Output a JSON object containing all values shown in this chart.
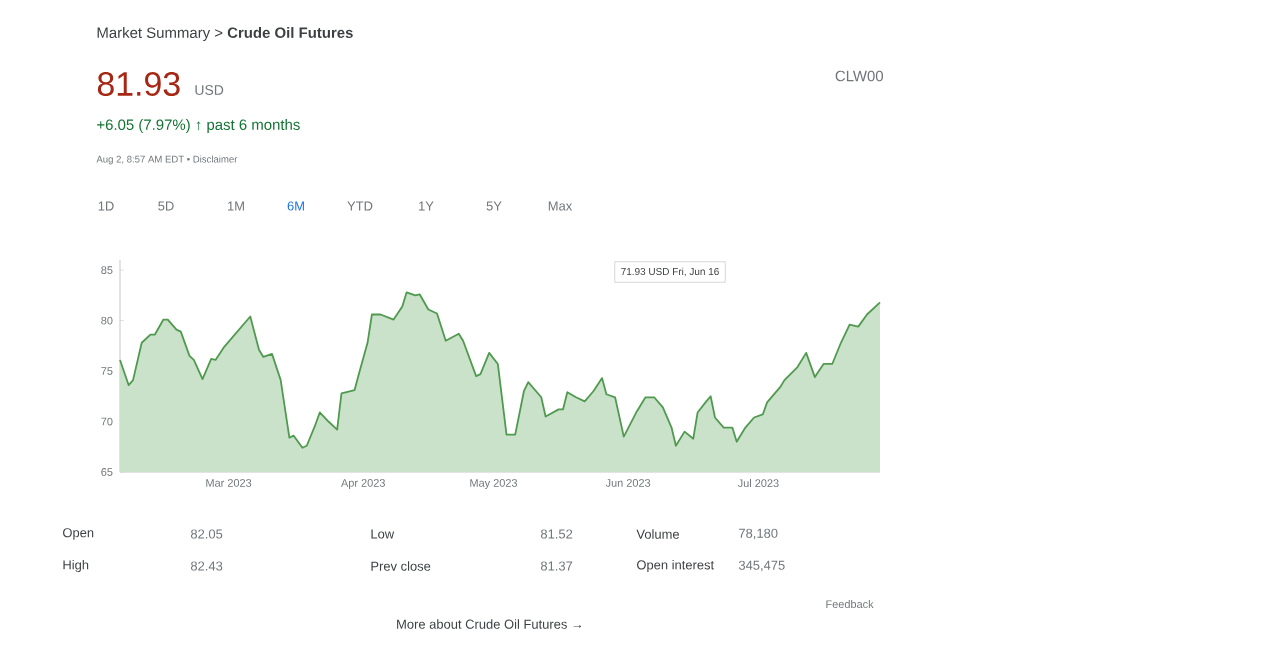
{
  "chart_data": {
    "type": "area",
    "title": "Market Summary > **Crude Oil Futures**",
    "color": "#4f9a4f",
    "x": [
      "2023-02-04",
      "2023-02-06",
      "2023-02-07",
      "2023-02-09",
      "2023-02-11",
      "2023-02-12",
      "2023-02-14",
      "2023-02-15",
      "2023-02-17",
      "2023-02-18",
      "2023-02-20",
      "2023-02-21",
      "2023-02-23",
      "2023-02-25",
      "2023-02-26",
      "2023-02-28",
      "2023-03-02",
      "2023-03-06",
      "2023-03-08",
      "2023-03-09",
      "2023-03-11",
      "2023-03-13",
      "2023-03-15",
      "2023-03-16",
      "2023-03-18",
      "2023-03-19",
      "2023-03-21",
      "2023-03-22",
      "2023-03-24",
      "2023-03-26",
      "2023-03-27",
      "2023-03-30",
      "2023-03-31",
      "2023-04-02",
      "2023-04-03",
      "2023-04-05",
      "2023-04-08",
      "2023-04-10",
      "2023-04-11",
      "2023-04-13",
      "2023-04-14",
      "2023-04-16",
      "2023-04-18",
      "2023-04-20",
      "2023-04-23",
      "2023-04-24",
      "2023-04-27",
      "2023-04-28",
      "2023-04-30",
      "2023-05-02",
      "2023-05-04",
      "2023-05-06",
      "2023-05-08",
      "2023-05-09",
      "2023-05-12",
      "2023-05-13",
      "2023-05-16",
      "2023-05-17",
      "2023-05-18",
      "2023-05-20",
      "2023-05-22",
      "2023-05-24",
      "2023-05-26",
      "2023-05-27",
      "2023-05-29",
      "2023-05-31",
      "2023-06-03",
      "2023-06-05",
      "2023-06-07",
      "2023-06-09",
      "2023-06-11",
      "2023-06-12",
      "2023-06-14",
      "2023-06-16",
      "2023-06-17",
      "2023-06-19",
      "2023-06-20",
      "2023-06-21",
      "2023-06-23",
      "2023-06-25",
      "2023-06-26",
      "2023-06-28",
      "2023-06-30",
      "2023-07-02",
      "2023-07-03",
      "2023-07-06",
      "2023-07-07",
      "2023-07-10",
      "2023-07-12",
      "2023-07-14",
      "2023-07-16",
      "2023-07-18",
      "2023-07-20",
      "2023-07-22",
      "2023-07-24",
      "2023-07-26",
      "2023-07-29"
    ],
    "values": [
      76.1,
      73.6,
      74.1,
      77.8,
      78.6,
      78.6,
      80.1,
      80.1,
      79.1,
      78.9,
      76.5,
      76.1,
      74.2,
      76.2,
      76.1,
      77.4,
      78.4,
      80.4,
      77.1,
      76.4,
      76.7,
      74.1,
      68.4,
      68.6,
      67.4,
      67.6,
      69.7,
      70.9,
      70.0,
      69.2,
      72.8,
      73.1,
      74.7,
      77.8,
      80.6,
      80.6,
      80.1,
      81.4,
      82.8,
      82.5,
      82.6,
      81.1,
      80.7,
      78.0,
      78.7,
      78.0,
      74.5,
      74.7,
      76.8,
      75.7,
      68.7,
      68.7,
      73.0,
      73.9,
      72.4,
      70.5,
      71.2,
      71.2,
      72.9,
      72.4,
      72.0,
      73.0,
      74.3,
      72.7,
      72.4,
      68.5,
      71.0,
      72.4,
      72.4,
      71.4,
      69.4,
      67.6,
      69.0,
      68.3,
      70.9,
      72.0,
      72.5,
      70.4,
      69.4,
      69.4,
      68.0,
      69.4,
      70.4,
      70.7,
      71.9,
      73.4,
      74.1,
      75.4,
      76.8,
      74.4,
      75.7,
      75.7,
      77.8,
      79.6,
      79.4,
      80.6,
      81.8
    ],
    "xlim": [
      "2023-02-04",
      "2023-07-29"
    ],
    "xticks": [
      {
        "value": "2023-03-01",
        "label": "Mar 2023"
      },
      {
        "value": "2023-04-01",
        "label": "Apr 2023"
      },
      {
        "value": "2023-05-01",
        "label": "May 2023"
      },
      {
        "value": "2023-06-01",
        "label": "Jun 2023"
      },
      {
        "value": "2023-07-01",
        "label": "Jul 2023"
      }
    ],
    "ylim": [
      65,
      86
    ],
    "yticks": [
      65,
      70,
      75,
      80,
      85
    ],
    "annotations": [
      "81.93",
      "USD",
      "+6.05 (7.97%) ↑ past 6 months",
      "Aug 2, 8:57 AM EDT • Disclaimer",
      "CLW00",
      "1D",
      "5D",
      "1M",
      "6M",
      "YTD",
      "1Y",
      "5Y",
      "Max",
      "71.93 USD Fri, Jun 16",
      "Open",
      "82.05",
      "Low",
      "81.52",
      "Volume",
      "78,180",
      "High",
      "82.43",
      "Prev close",
      "81.37",
      "Open interest",
      "345,475",
      "Feedback",
      "More about Crude Oil Futures →"
    ]
  }
}
